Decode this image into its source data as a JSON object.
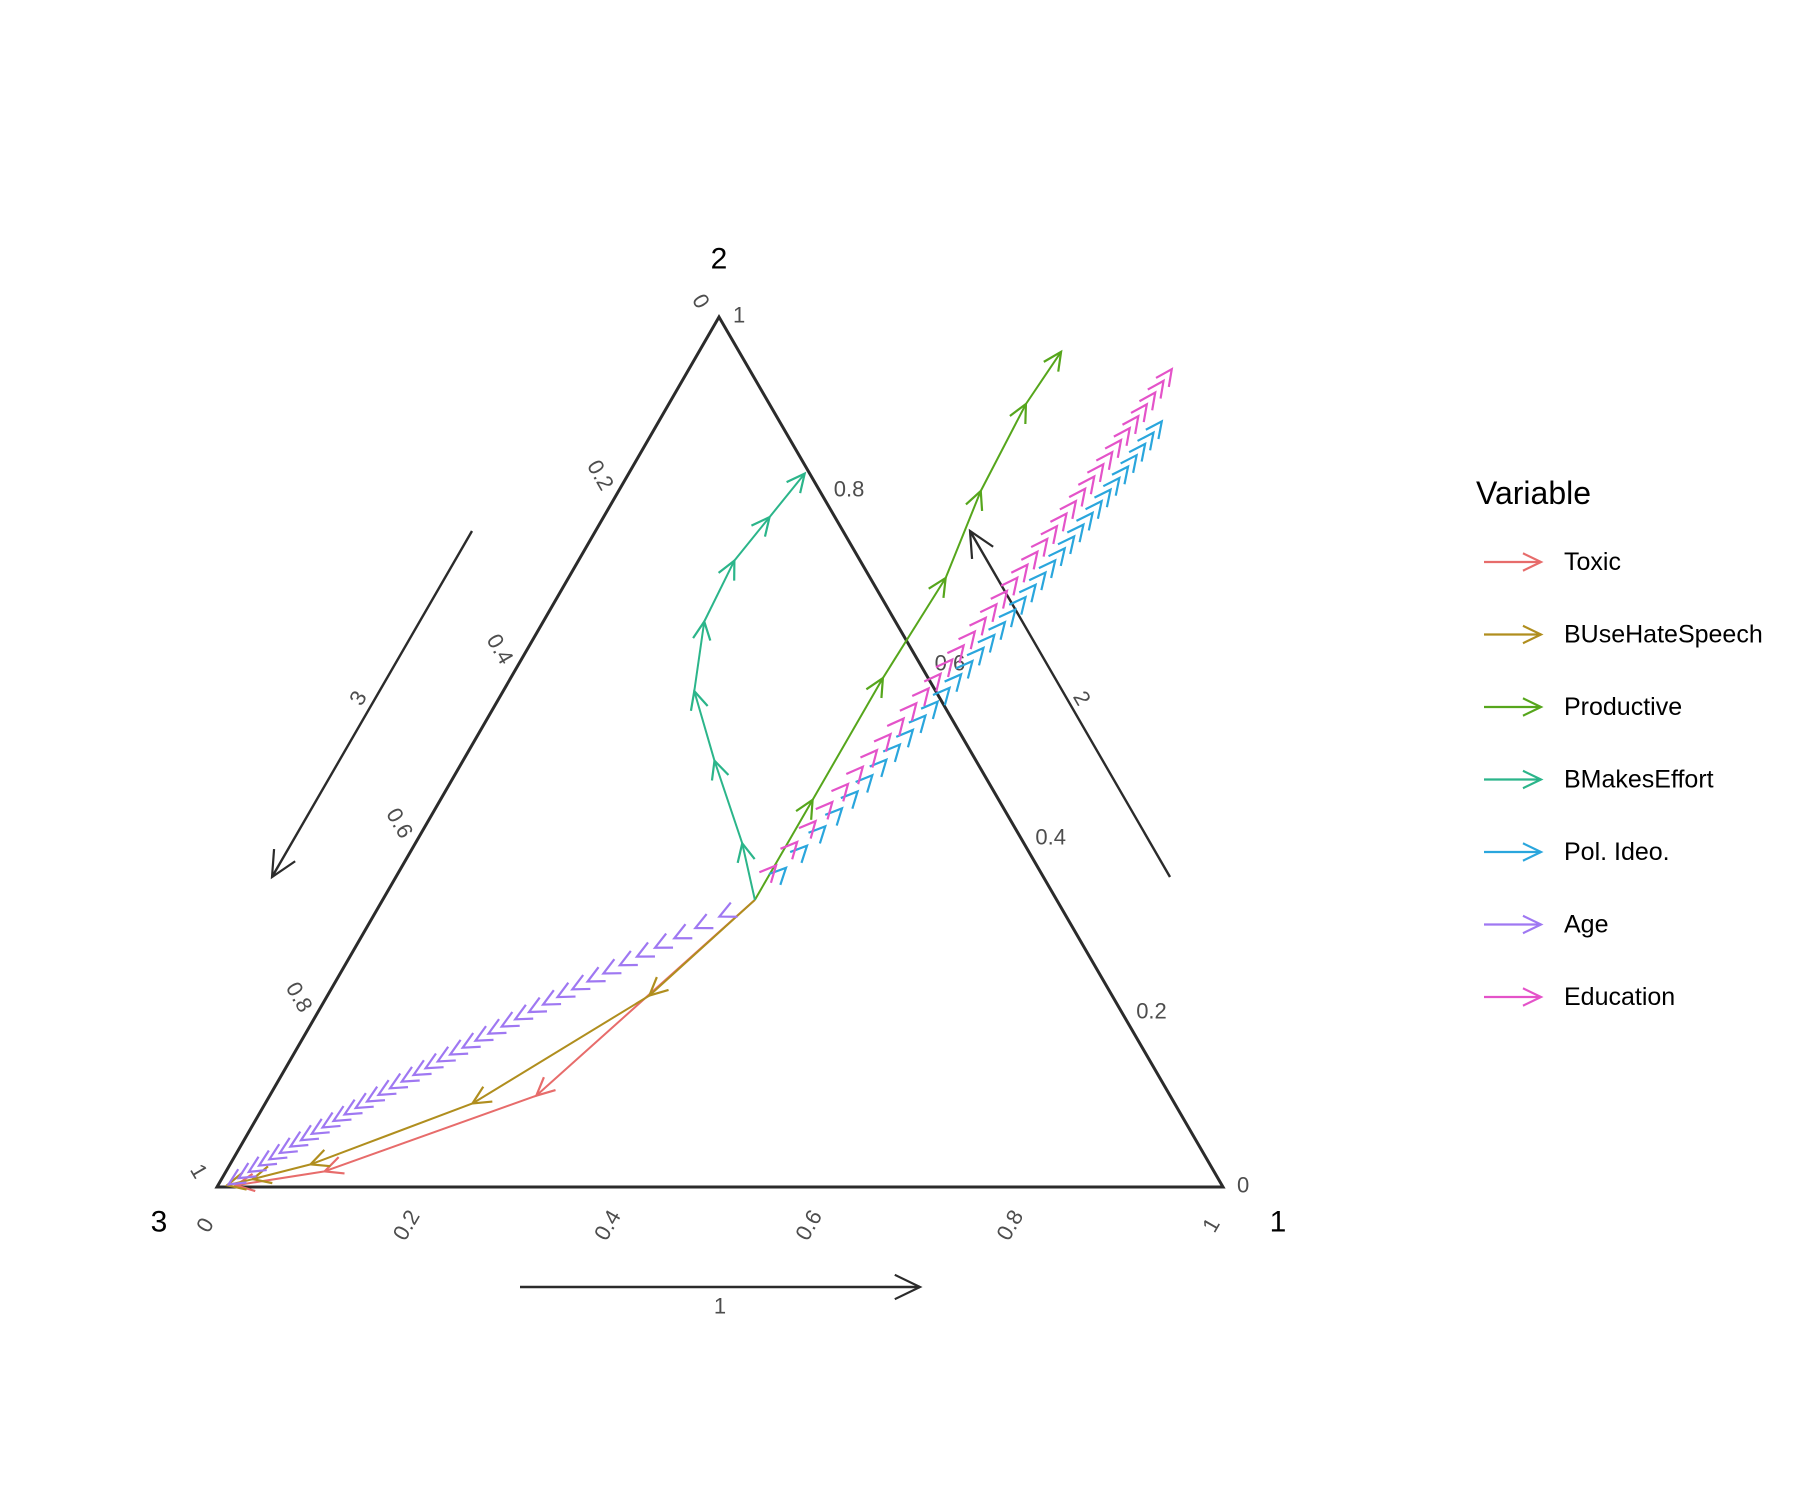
{
  "chart_data": {
    "type": "ternary-arrows",
    "axes": {
      "names": [
        "1",
        "2",
        "3"
      ],
      "ticks": [
        "0",
        "0.2",
        "0.4",
        "0.6",
        "0.8",
        "1"
      ],
      "range": [
        0,
        1
      ]
    },
    "legend": {
      "title": "Variable",
      "position": "right"
    },
    "series": [
      {
        "name": "Toxic",
        "color": "#E76C6B",
        "points": [
          [
            0.37,
            0.33,
            0.3
          ],
          [
            0.265,
            0.105,
            0.63
          ],
          [
            0.098,
            0.018,
            0.884
          ],
          [
            0.018,
            0.002,
            0.98
          ]
        ]
      },
      {
        "name": "BUseHateSpeech",
        "color": "#B08E1E",
        "points": [
          [
            0.37,
            0.33,
            0.3
          ],
          [
            0.32,
            0.22,
            0.46
          ],
          [
            0.206,
            0.096,
            0.698
          ],
          [
            0.08,
            0.026,
            0.894
          ],
          [
            0.031,
            0.009,
            0.96
          ],
          [
            0.009,
            0.002,
            0.989
          ]
        ]
      },
      {
        "name": "Productive",
        "color": "#56A61C",
        "points": [
          [
            0.37,
            0.33,
            0.3
          ],
          [
            0.37,
            0.445,
            0.185
          ],
          [
            0.37,
            0.585,
            0.045
          ],
          [
            0.375,
            0.7,
            -0.075
          ],
          [
            0.36,
            0.8,
            -0.16
          ],
          [
            0.355,
            0.9,
            -0.255
          ],
          [
            0.36,
            0.96,
            -0.32
          ]
        ]
      },
      {
        "name": "BMakesEffort",
        "color": "#2BB58A",
        "points": [
          [
            0.37,
            0.33,
            0.3
          ],
          [
            0.325,
            0.395,
            0.28
          ],
          [
            0.25,
            0.49,
            0.26
          ],
          [
            0.19,
            0.57,
            0.24
          ],
          [
            0.16,
            0.65,
            0.19
          ],
          [
            0.155,
            0.72,
            0.125
          ],
          [
            0.165,
            0.77,
            0.065
          ],
          [
            0.175,
            0.82,
            0.005
          ]
        ]
      },
      {
        "name": "Pol. Ideo.",
        "color": "#2AA6DD",
        "start": [
          0.37,
          0.33,
          0.3
        ],
        "end": [
          0.5,
          0.88,
          -0.38
        ],
        "arrows": 34
      },
      {
        "name": "Age",
        "color": "#9F78F2",
        "start": [
          0.37,
          0.33,
          0.3
        ],
        "end": [
          0.01,
          0.003,
          0.987
        ],
        "arrows": 38
      },
      {
        "name": "Education",
        "color": "#E453C9",
        "start": [
          0.36,
          0.33,
          0.31
        ],
        "end": [
          0.48,
          0.94,
          -0.42
        ],
        "arrows": 36
      }
    ]
  }
}
